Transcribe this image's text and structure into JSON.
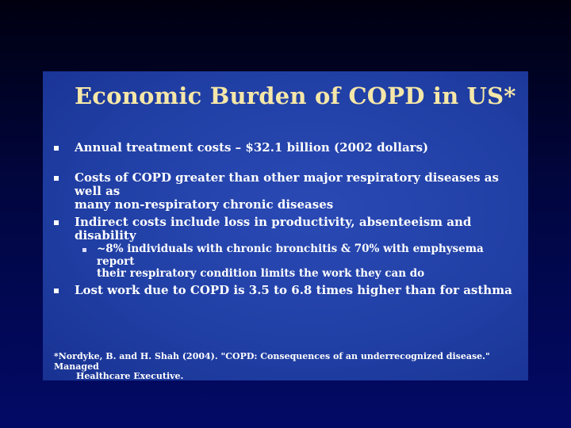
{
  "slide": {
    "title": "Economic Burden of COPD in US*",
    "bullets": [
      {
        "line1": "Annual treatment costs –  $32.1 billion (2002 dollars)",
        "line2": ""
      },
      {
        "line1": "Costs of COPD greater than other major respiratory diseases as well as",
        "line2": "many non-respiratory chronic diseases"
      },
      {
        "line1": "Indirect costs include loss in productivity, absenteeism and disability",
        "line2": ""
      },
      {
        "line1": "~8% individuals with chronic bronchitis & 70% with emphysema report",
        "line2": "their respiratory condition limits the work they can do"
      },
      {
        "line1": "Lost work due to COPD is 3.5 to 6.8 times higher than for asthma",
        "line2": ""
      }
    ],
    "footnote": {
      "line1": "*Nordyke, B. and H. Shah (2004). \"COPD: Consequences of an underrecognized disease.\" Managed",
      "line2": "Healthcare Executive."
    }
  },
  "colors": {
    "title": "#f5e7a8",
    "slide_background": "#2140a6",
    "page_background": "#020a66",
    "text": "#ffffff"
  }
}
